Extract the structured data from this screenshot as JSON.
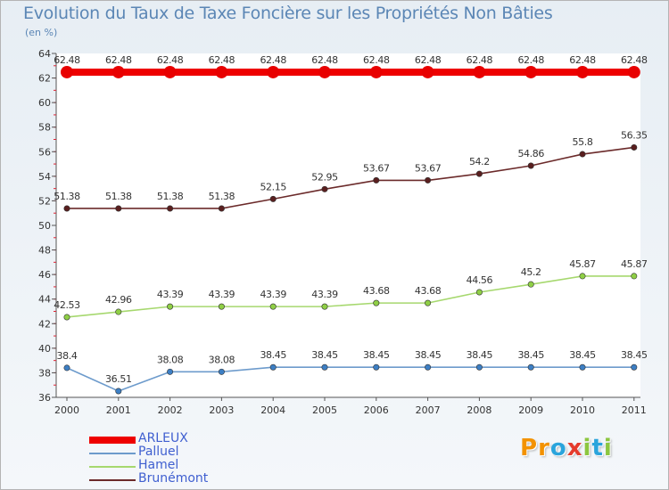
{
  "title": "Evolution du Taux de Taxe Foncière sur les Propriétés Non Bâties",
  "subtitle": "(en %)",
  "logo": {
    "text": "Proxiti",
    "letters": [
      "P",
      "r",
      "o",
      "x",
      "i",
      "t",
      "i"
    ],
    "colors": [
      "#f39200",
      "#f39200",
      "#2aa4dc",
      "#e53b2c",
      "#8cc63f",
      "#2aa4dc",
      "#8cc63f"
    ]
  },
  "chart_data": {
    "type": "line",
    "title": "Evolution du Taux de Taxe Foncière sur les Propriétés Non Bâties",
    "ylabel": "(en %)",
    "xlabel": "",
    "ylim": [
      36,
      64
    ],
    "yticks": [
      36,
      38,
      40,
      42,
      44,
      46,
      48,
      50,
      52,
      54,
      56,
      58,
      60,
      62,
      64
    ],
    "categories": [
      "2000",
      "2001",
      "2002",
      "2003",
      "2004",
      "2005",
      "2006",
      "2007",
      "2008",
      "2009",
      "2010",
      "2011"
    ],
    "series": [
      {
        "name": "ARLEUX",
        "color": "#ee0000",
        "thick": true,
        "values": [
          62.48,
          62.48,
          62.48,
          62.48,
          62.48,
          62.48,
          62.48,
          62.48,
          62.48,
          62.48,
          62.48,
          62.48
        ],
        "labels": [
          "62.48",
          "62.48",
          "62.48",
          "62.48",
          "62.48",
          "62.48",
          "62.48",
          "62.48",
          "62.48",
          "62.48",
          "62.48",
          "62.48"
        ]
      },
      {
        "name": "Palluel",
        "color": "#6d9bcc",
        "marker": "#3d7fc4",
        "thick": false,
        "values": [
          38.4,
          36.51,
          38.08,
          38.08,
          38.45,
          38.45,
          38.45,
          38.45,
          38.45,
          38.45,
          38.45,
          38.45
        ],
        "labels": [
          "38.4",
          "36.51",
          "38.08",
          "38.08",
          "38.45",
          "38.45",
          "38.45",
          "38.45",
          "38.45",
          "38.45",
          "38.45",
          "38.45"
        ]
      },
      {
        "name": "Hamel",
        "color": "#a6d86e",
        "marker": "#8fcf45",
        "thick": false,
        "values": [
          42.53,
          42.96,
          43.39,
          43.39,
          43.39,
          43.39,
          43.68,
          43.68,
          44.56,
          45.2,
          45.87,
          45.87
        ],
        "labels": [
          "42.53",
          "42.96",
          "43.39",
          "43.39",
          "43.39",
          "43.39",
          "43.68",
          "43.68",
          "44.56",
          "45.2",
          "45.87",
          "45.87"
        ]
      },
      {
        "name": "Brunémont",
        "color": "#6b2a2a",
        "marker": "#5a1f1f",
        "thick": false,
        "values": [
          51.38,
          51.38,
          51.38,
          51.38,
          52.15,
          52.95,
          53.67,
          53.67,
          54.2,
          54.86,
          55.8,
          56.35
        ],
        "labels": [
          "51.38",
          "51.38",
          "51.38",
          "51.38",
          "52.15",
          "52.95",
          "53.67",
          "53.67",
          "54.2",
          "54.86",
          "55.8",
          "56.35"
        ]
      }
    ],
    "grid": false,
    "legend": "bottom-left"
  }
}
